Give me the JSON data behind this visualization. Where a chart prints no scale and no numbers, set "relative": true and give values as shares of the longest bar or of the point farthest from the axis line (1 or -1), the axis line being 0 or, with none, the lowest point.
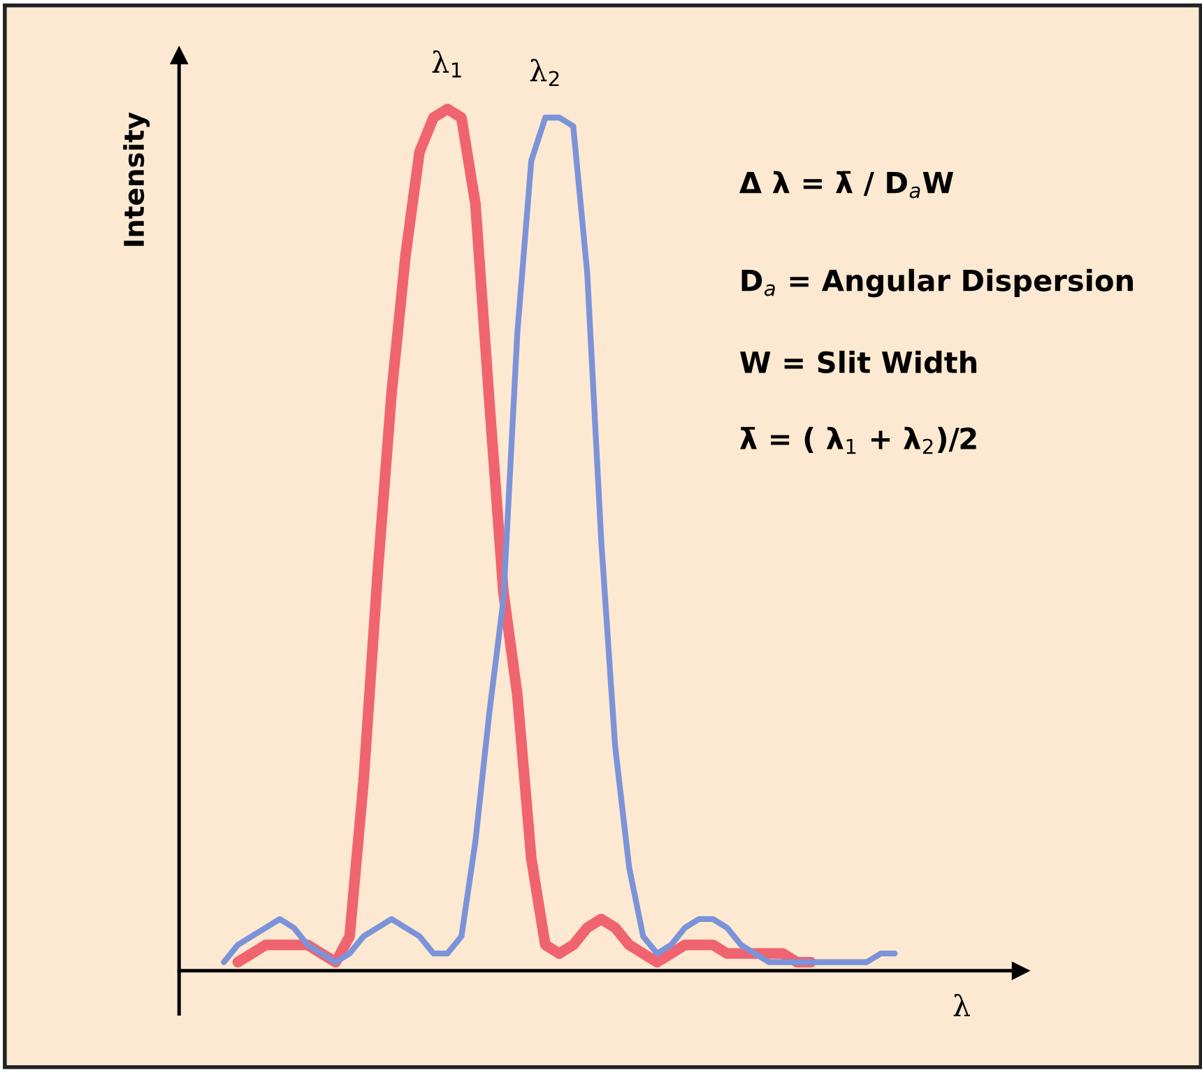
{
  "chart_data": {
    "type": "line",
    "relative": true,
    "xlabel": "λ",
    "ylabel": "Intensity",
    "legend": false,
    "grid": false,
    "marker": "none",
    "line_style": "solid",
    "categories": [
      null,
      null,
      null,
      null,
      null,
      null,
      null,
      null,
      null,
      null,
      null,
      null,
      null,
      null,
      null,
      null,
      null,
      null,
      null,
      null,
      null,
      null,
      null,
      null,
      null,
      null,
      null,
      null,
      null,
      null,
      null,
      null,
      null,
      null,
      null,
      null,
      null,
      null,
      null,
      null,
      null,
      null,
      null,
      null,
      null,
      null,
      null,
      null,
      null
    ],
    "series": [
      {
        "color": "#f06470",
        "values": [
          null,
          0.01,
          0.02,
          0.03,
          0.03,
          0.03,
          0.03,
          0.02,
          0.01,
          0.04,
          0.22,
          0.46,
          0.67,
          0.83,
          0.95,
          0.99,
          1,
          0.99,
          0.89,
          0.66,
          0.44,
          0.32,
          0.13,
          0.03,
          0.02,
          0.03,
          0.05,
          0.06,
          0.05,
          0.03,
          0.02,
          0.01,
          0.02,
          0.03,
          0.03,
          0.03,
          0.02,
          0.02,
          0.02,
          0.02,
          0.02,
          0.01,
          0.01,
          null,
          null,
          null,
          null,
          null,
          null
        ]
      },
      {
        "color": "#7b93d8",
        "values": [
          0.01,
          0.03,
          0.04,
          0.05,
          0.06,
          0.05,
          0.03,
          0.02,
          0.01,
          0.02,
          0.04,
          0.05,
          0.06,
          0.05,
          0.04,
          0.02,
          0.02,
          0.04,
          0.15,
          0.3,
          0.43,
          0.74,
          0.94,
          0.99,
          0.99,
          0.98,
          0.81,
          0.5,
          0.26,
          0.12,
          0.04,
          0.02,
          0.03,
          0.05,
          0.06,
          0.06,
          0.05,
          0.03,
          0.02,
          0.01,
          0.01,
          0.01,
          0.01,
          0.01,
          0.01,
          0.01,
          0.01,
          0.02,
          0.02
        ]
      }
    ],
    "annotations": [
      "λ$_{1}$",
      "λ$_{2}$",
      "Δ λ = λ̄ / D$_{a}$W",
      "D$_{a}$ = Angular Dispersion",
      "W = Slit Width",
      "λ̄ = ( λ$_{1}$ + λ$_{2}$)/2"
    ]
  }
}
